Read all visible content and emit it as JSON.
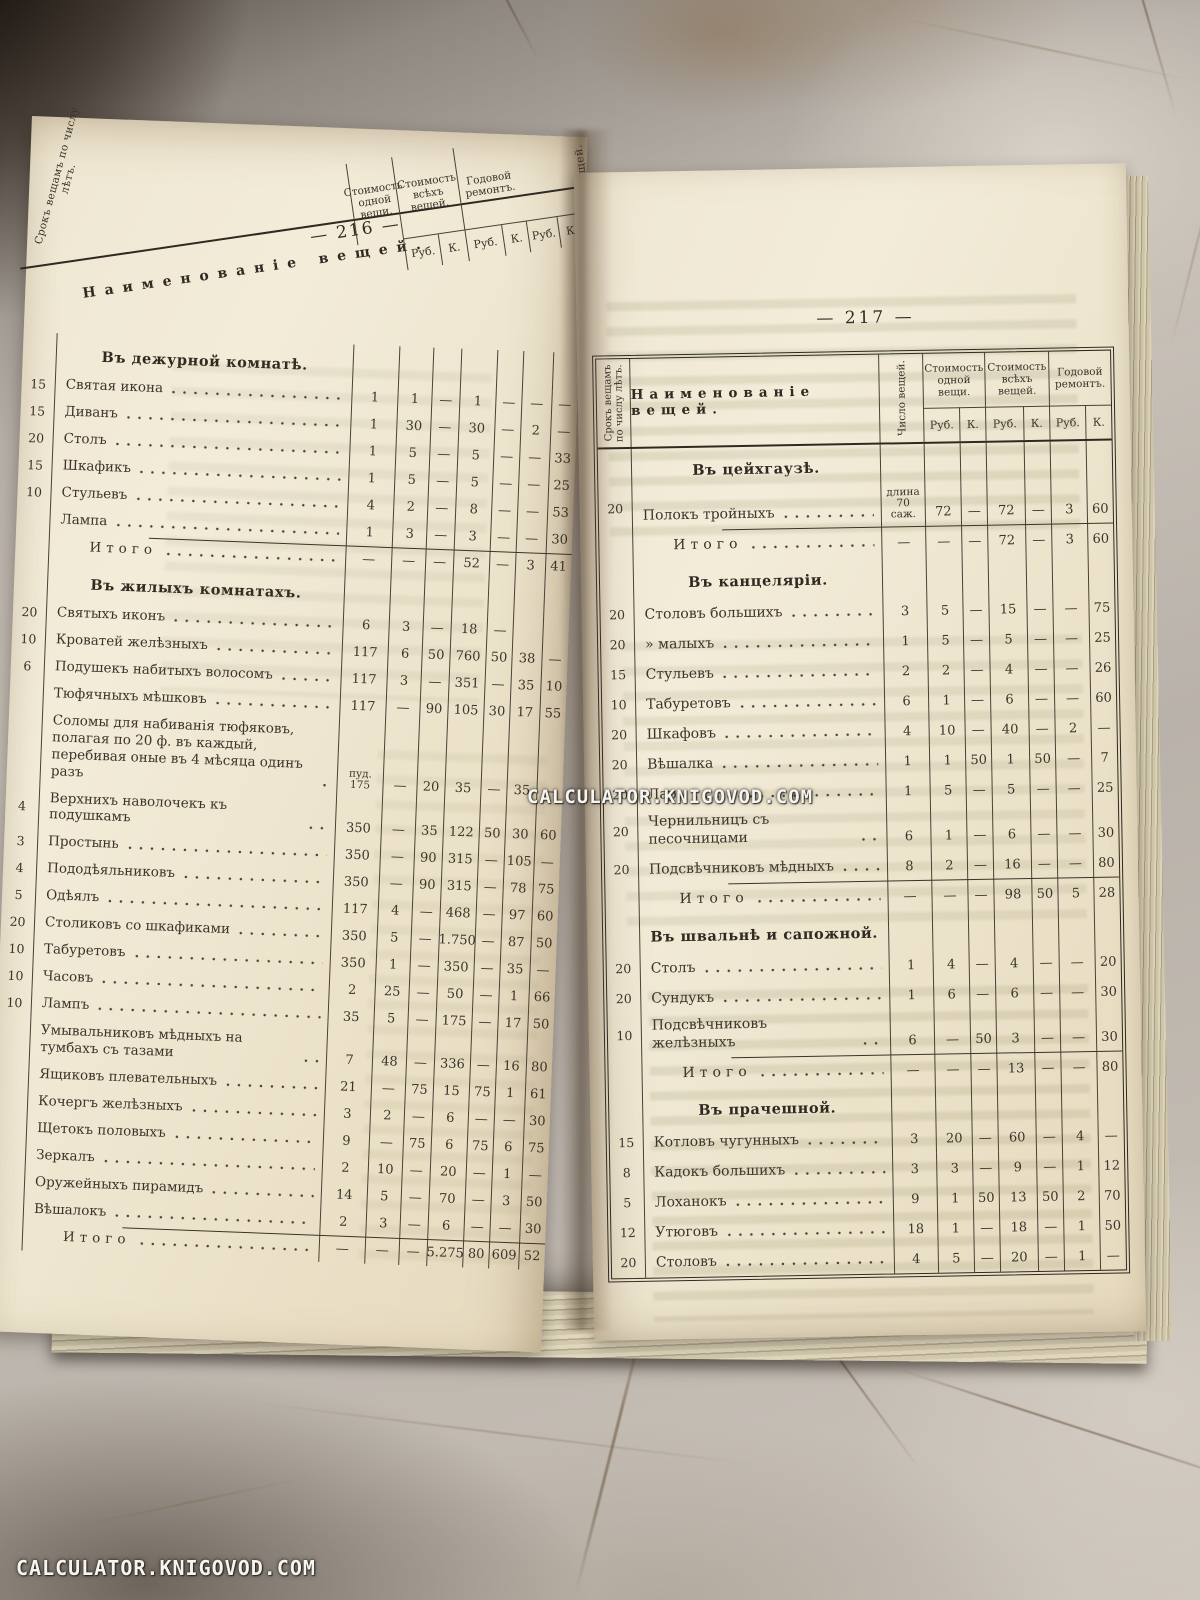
{
  "watermarks": {
    "center": "CALCULATOR.KNIGOVOD.COM",
    "bottom_left": "CALCULATOR.KNIGOVOD.COM"
  },
  "shared": {
    "col_years": "Срокъ вещамъ по числу лѣтъ.",
    "col_name": "Наименованіе вещей.",
    "col_count": "Число вещей.",
    "col_groups": [
      {
        "label": "Стоимость одной вещи.",
        "sub": [
          "Руб.",
          "К."
        ]
      },
      {
        "label": "Стоимость всѣхъ вещей.",
        "sub": [
          "Руб.",
          "К."
        ]
      },
      {
        "label": "Годовой ремонтъ.",
        "sub": [
          "Руб.",
          "К."
        ]
      }
    ]
  },
  "left_page": {
    "page_number": "— 216 —",
    "sections": [
      {
        "title": "Въ дежурной комнатѣ.",
        "rows": [
          {
            "years": "15",
            "name": "Святая икона",
            "c": [
              "1",
              "1",
              "—",
              "1",
              "—",
              "—",
              "—"
            ]
          },
          {
            "years": "15",
            "name": "Диванъ",
            "c": [
              "1",
              "30",
              "—",
              "30",
              "—",
              "2",
              "—"
            ]
          },
          {
            "years": "20",
            "name": "Столъ",
            "c": [
              "1",
              "5",
              "—",
              "5",
              "—",
              "—",
              "33"
            ]
          },
          {
            "years": "15",
            "name": "Шкафикъ",
            "c": [
              "1",
              "5",
              "—",
              "5",
              "—",
              "—",
              "25"
            ]
          },
          {
            "years": "10",
            "name": "Стульевъ",
            "c": [
              "4",
              "2",
              "—",
              "8",
              "—",
              "—",
              "53"
            ]
          },
          {
            "years": "",
            "name": "Лампа",
            "c": [
              "1",
              "3",
              "—",
              "3",
              "—",
              "—",
              "30"
            ]
          }
        ],
        "total": {
          "label": "Итого",
          "c": [
            "—",
            "—",
            "—",
            "52",
            "—",
            "3",
            "41"
          ]
        }
      },
      {
        "title": "Въ жилыхъ комнатахъ.",
        "rows": [
          {
            "years": "20",
            "name": "Святыхъ иконъ",
            "c": [
              "6",
              "3",
              "—",
              "18",
              "—",
              "",
              ""
            ]
          },
          {
            "years": "10",
            "name": "Кроватей желѣзныхъ",
            "c": [
              "117",
              "6",
              "50",
              "760",
              "50",
              "38",
              "—"
            ]
          },
          {
            "years": "6",
            "name": "Подушекъ набитыхъ волосомъ",
            "c": [
              "117",
              "3",
              "—",
              "351",
              "—",
              "35",
              "10"
            ]
          },
          {
            "years": "",
            "name": "Тюфячныхъ мѣшковъ",
            "c": [
              "117",
              "—",
              "90",
              "105",
              "30",
              "17",
              "55"
            ]
          },
          {
            "years": "",
            "name": "Соломы для набиванія тюфяковъ, полагая по 20 ф. въ каждый, перебивая оные въ 4 мѣсяца одинъ разъ",
            "c": [
              "пуд. 175",
              "—",
              "20",
              "35",
              "—",
              "35",
              "—"
            ]
          },
          {
            "years": "4",
            "name": "Верхнихъ наволочекъ къ подушкамъ",
            "c": [
              "350",
              "—",
              "35",
              "122",
              "50",
              "30",
              "60"
            ]
          },
          {
            "years": "3",
            "name": "Простынь",
            "c": [
              "350",
              "—",
              "90",
              "315",
              "—",
              "105",
              "—"
            ]
          },
          {
            "years": "4",
            "name": "Пододѣяльниковъ",
            "c": [
              "350",
              "—",
              "90",
              "315",
              "—",
              "78",
              "75"
            ]
          },
          {
            "years": "5",
            "name": "Одѣялъ",
            "c": [
              "117",
              "4",
              "—",
              "468",
              "—",
              "97",
              "60"
            ]
          },
          {
            "years": "20",
            "name": "Столиковъ со шкафиками",
            "c": [
              "350",
              "5",
              "—",
              "1.750",
              "—",
              "87",
              "50"
            ]
          },
          {
            "years": "10",
            "name": "Табуретовъ",
            "c": [
              "350",
              "1",
              "—",
              "350",
              "—",
              "35",
              "—"
            ]
          },
          {
            "years": "10",
            "name": "Часовъ",
            "c": [
              "2",
              "25",
              "—",
              "50",
              "—",
              "1",
              "66"
            ]
          },
          {
            "years": "10",
            "name": "Лампъ",
            "c": [
              "35",
              "5",
              "—",
              "175",
              "—",
              "17",
              "50"
            ]
          },
          {
            "years": "",
            "name": "Умывальниковъ мѣдныхъ на тумбахъ съ тазами",
            "c": [
              "7",
              "48",
              "—",
              "336",
              "—",
              "16",
              "80"
            ]
          },
          {
            "years": "",
            "name": "Ящиковъ плевательныхъ",
            "c": [
              "21",
              "—",
              "75",
              "15",
              "75",
              "1",
              "61"
            ]
          },
          {
            "years": "",
            "name": "Кочергъ желѣзныхъ",
            "c": [
              "3",
              "2",
              "—",
              "6",
              "—",
              "—",
              "30"
            ]
          },
          {
            "years": "",
            "name": "Щетокъ половыхъ",
            "c": [
              "9",
              "—",
              "75",
              "6",
              "75",
              "6",
              "75"
            ]
          },
          {
            "years": "",
            "name": "Зеркалъ",
            "c": [
              "2",
              "10",
              "—",
              "20",
              "—",
              "1",
              "—"
            ]
          },
          {
            "years": "",
            "name": "Оружейныхъ пирамидъ",
            "c": [
              "14",
              "5",
              "—",
              "70",
              "—",
              "3",
              "50"
            ]
          },
          {
            "years": "",
            "name": "Вѣшалокъ",
            "c": [
              "2",
              "3",
              "—",
              "6",
              "—",
              "—",
              "30"
            ]
          }
        ],
        "total": {
          "label": "Итого",
          "c": [
            "—",
            "—",
            "—",
            "5.275",
            "80",
            "609",
            "52"
          ]
        }
      }
    ]
  },
  "right_page": {
    "page_number": "— 217 —",
    "sections": [
      {
        "title": "Въ цейхгаузѣ.",
        "rows": [
          {
            "years": "20",
            "name": "Полокъ тройныхъ",
            "c": [
              "длина 70 саж.",
              "72",
              "—",
              "72",
              "—",
              "3",
              "60"
            ]
          }
        ],
        "total": {
          "label": "Итого",
          "c": [
            "—",
            "—",
            "—",
            "72",
            "—",
            "3",
            "60"
          ]
        }
      },
      {
        "title": "Въ канцеляріи.",
        "rows": [
          {
            "years": "20",
            "name": "Столовъ большихъ",
            "c": [
              "3",
              "5",
              "—",
              "15",
              "—",
              "—",
              "75"
            ]
          },
          {
            "years": "20",
            "name": "»  малыхъ",
            "c": [
              "1",
              "5",
              "—",
              "5",
              "—",
              "—",
              "25"
            ]
          },
          {
            "years": "15",
            "name": "Стульевъ",
            "c": [
              "2",
              "2",
              "—",
              "4",
              "—",
              "—",
              "26"
            ]
          },
          {
            "years": "10",
            "name": "Табуретовъ",
            "c": [
              "6",
              "1",
              "—",
              "6",
              "—",
              "—",
              "60"
            ]
          },
          {
            "years": "20",
            "name": "Шкафовъ",
            "c": [
              "4",
              "10",
              "—",
              "40",
              "—",
              "2",
              "—"
            ]
          },
          {
            "years": "20",
            "name": "Вѣшалка",
            "c": [
              "1",
              "1",
              "50",
              "1",
              "50",
              "—",
              "7"
            ]
          },
          {
            "years": "20",
            "name": "Ларь",
            "c": [
              "1",
              "5",
              "—",
              "5",
              "—",
              "—",
              "25"
            ]
          },
          {
            "years": "20",
            "name": "Чернильницъ съ песочницами",
            "c": [
              "6",
              "1",
              "—",
              "6",
              "—",
              "—",
              "30"
            ]
          },
          {
            "years": "20",
            "name": "Подсвѣчниковъ мѣдныхъ",
            "c": [
              "8",
              "2",
              "—",
              "16",
              "—",
              "—",
              "80"
            ]
          }
        ],
        "total": {
          "label": "Итого",
          "c": [
            "—",
            "—",
            "—",
            "98",
            "50",
            "5",
            "28"
          ]
        }
      },
      {
        "title": "Въ швальнѣ и сапожной.",
        "rows": [
          {
            "years": "20",
            "name": "Столъ",
            "c": [
              "1",
              "4",
              "—",
              "4",
              "—",
              "—",
              "20"
            ]
          },
          {
            "years": "20",
            "name": "Сундукъ",
            "c": [
              "1",
              "6",
              "—",
              "6",
              "—",
              "—",
              "30"
            ]
          },
          {
            "years": "10",
            "name": "Подсвѣчниковъ желѣзныхъ",
            "c": [
              "6",
              "—",
              "50",
              "3",
              "—",
              "—",
              "30"
            ]
          }
        ],
        "total": {
          "label": "Итого",
          "c": [
            "—",
            "—",
            "—",
            "13",
            "—",
            "—",
            "80"
          ]
        }
      },
      {
        "title": "Въ прачешной.",
        "rows": [
          {
            "years": "15",
            "name": "Котловъ чугунныхъ",
            "c": [
              "3",
              "20",
              "—",
              "60",
              "—",
              "4",
              "—"
            ]
          },
          {
            "years": "8",
            "name": "Кадокъ большихъ",
            "c": [
              "3",
              "3",
              "—",
              "9",
              "—",
              "1",
              "12"
            ]
          },
          {
            "years": "5",
            "name": "Лоханокъ",
            "c": [
              "9",
              "1",
              "50",
              "13",
              "50",
              "2",
              "70"
            ]
          },
          {
            "years": "12",
            "name": "Утюговъ",
            "c": [
              "18",
              "1",
              "—",
              "18",
              "—",
              "1",
              "50"
            ]
          },
          {
            "years": "20",
            "name": "Столовъ",
            "c": [
              "4",
              "5",
              "—",
              "20",
              "—",
              "1",
              "—"
            ]
          }
        ]
      }
    ]
  }
}
